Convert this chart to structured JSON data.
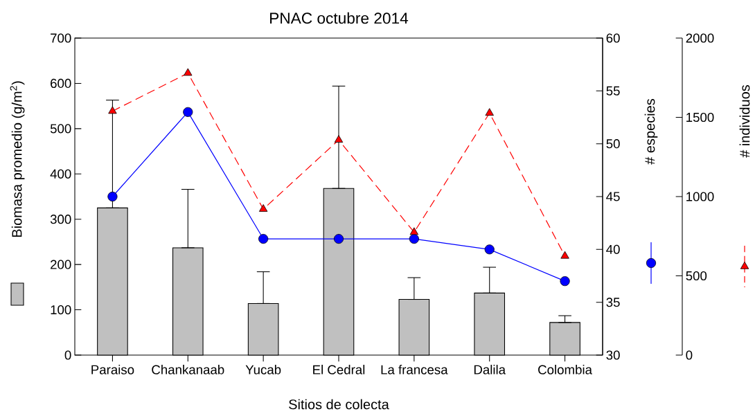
{
  "chart_data": {
    "type": "bar",
    "title": "PNAC octubre 2014",
    "xlabel": "Sitios de colecta",
    "ylabel": "Biomasa promedio (g/m$^{2}$)",
    "y2label": "# especies",
    "y3label": "# individuos",
    "categories": [
      "Paraiso",
      "Chankanaab",
      "Yucab",
      "El Cedral",
      "La francesa",
      "Dalila",
      "Colombia"
    ],
    "ylim": [
      0,
      700
    ],
    "yticks": [
      0,
      100,
      200,
      300,
      400,
      500,
      600,
      700
    ],
    "y2lim": [
      30,
      60
    ],
    "y2ticks": [
      30,
      35,
      40,
      45,
      50,
      55,
      60
    ],
    "y3lim": [
      0,
      2000
    ],
    "y3ticks": [
      0,
      500,
      1000,
      1500,
      2000
    ],
    "series": [
      {
        "color": "#c0c0c0",
        "values": [
          325,
          237,
          114,
          368,
          123,
          137,
          72
        ],
        "errors": [
          [
            325,
            563
          ],
          [
            237,
            366
          ],
          [
            114,
            184
          ],
          [
            368,
            594
          ],
          [
            123,
            171
          ],
          [
            137,
            194
          ],
          [
            72,
            87
          ]
        ]
      },
      {
        "type": "line",
        "axis": "y2",
        "color": "#0000ff",
        "marker": "circle",
        "line_style": "solid",
        "values": [
          45,
          53,
          41,
          41,
          41,
          40,
          37
        ]
      },
      {
        "type": "line",
        "axis": "y3",
        "color": "#ff0000",
        "marker": "triangle",
        "line_style": "dashed",
        "values": [
          1539,
          1779,
          921,
          1357,
          775,
          1527,
          625
        ]
      }
    ]
  }
}
